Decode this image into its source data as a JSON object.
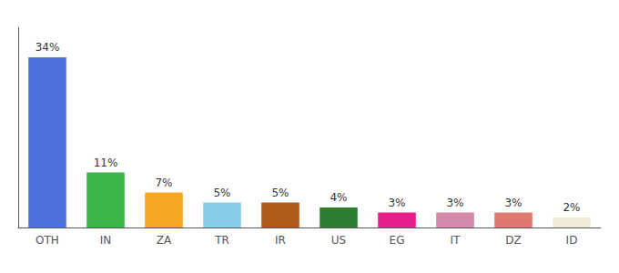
{
  "chart_data": {
    "type": "bar",
    "categories": [
      "OTH",
      "IN",
      "ZA",
      "TR",
      "IR",
      "US",
      "EG",
      "IT",
      "DZ",
      "ID"
    ],
    "values": [
      34,
      11,
      7,
      5,
      5,
      4,
      3,
      3,
      3,
      2
    ],
    "value_labels": [
      "34%",
      "11%",
      "7%",
      "5%",
      "5%",
      "4%",
      "3%",
      "3%",
      "3%",
      "2%"
    ],
    "colors": [
      "#4d6fdb",
      "#3cb54a",
      "#f5a623",
      "#87ceeb",
      "#b05a1a",
      "#2e7d32",
      "#e91e8c",
      "#d48aaa",
      "#e07870",
      "#f0ead6"
    ],
    "ylim": [
      0,
      40
    ],
    "data_labels": true,
    "tick_labels": "x",
    "grid": false
  }
}
